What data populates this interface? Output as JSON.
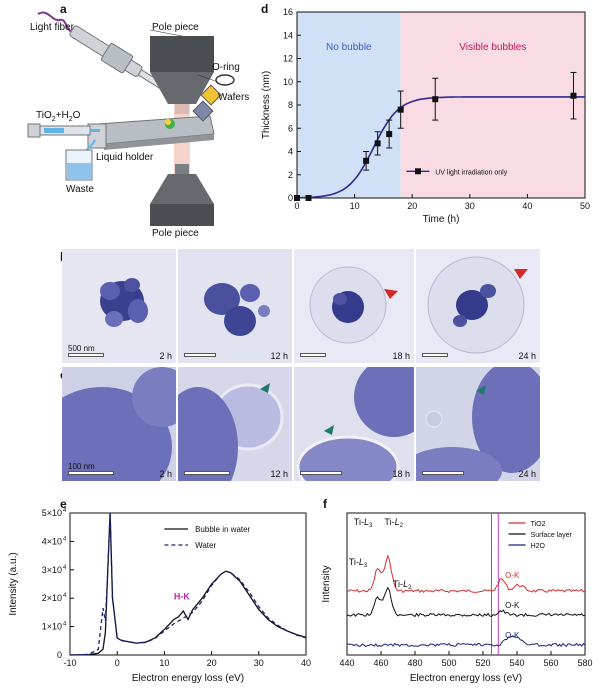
{
  "panels": {
    "a": {
      "label": "a",
      "labels": {
        "light_fiber": "Light fiber",
        "pole_top": "Pole piece",
        "oring": "O-ring",
        "wafers": "Wafers",
        "tio2": "TiO",
        "tio2_sub": "2",
        "tio2_rest": "+H",
        "h2o_sub": "2",
        "o": "O",
        "liquid_holder": "Liquid holder",
        "waste": "Waste",
        "pole_bottom": "Pole piece"
      }
    },
    "b": {
      "label": "b",
      "scale": "500 nm",
      "tiles": [
        "2 h",
        "12 h",
        "18 h",
        "24 h"
      ]
    },
    "c": {
      "label": "c",
      "scale": "100 nm",
      "tiles": [
        "2 h",
        "12 h",
        "18 h",
        "24 h"
      ]
    },
    "d": {
      "label": "d"
    },
    "e": {
      "label": "e"
    },
    "f": {
      "label": "f"
    }
  },
  "chart_data": [
    {
      "id": "d",
      "type": "scatter",
      "xlabel": "Time (h)",
      "ylabel": "Thickness (nm)",
      "xlim": [
        0,
        50
      ],
      "ylim": [
        0,
        16
      ],
      "xticks": [
        0,
        10,
        20,
        30,
        40,
        50
      ],
      "yticks": [
        0,
        2,
        4,
        6,
        8,
        10,
        12,
        14,
        16
      ],
      "regions": [
        {
          "label": "No bubble",
          "x0": 0,
          "x1": 18,
          "color": "#cfe0f7",
          "text_color": "#3a5fc8"
        },
        {
          "label": "Visible bubbles",
          "x0": 18,
          "x1": 50,
          "color": "#f9dbe3",
          "text_color": "#c2185b"
        }
      ],
      "series": [
        {
          "name": "UV light irradiation only",
          "x": [
            0,
            2,
            12,
            14,
            16,
            18,
            24,
            48
          ],
          "y": [
            0,
            0,
            3.2,
            4.7,
            5.5,
            7.6,
            8.5,
            8.8
          ],
          "err": [
            0,
            0,
            0.8,
            1.0,
            1.2,
            1.6,
            1.8,
            2.0
          ]
        }
      ],
      "legend": "center-right"
    },
    {
      "id": "e",
      "type": "line",
      "xlabel": "Electron energy loss (eV)",
      "ylabel": "Intensity (a.u.)",
      "xlim": [
        -10,
        40
      ],
      "ylim": [
        0,
        50000
      ],
      "xticks": [
        -10,
        0,
        10,
        20,
        30,
        40
      ],
      "yticks": [
        0,
        10000,
        20000,
        30000,
        40000,
        50000
      ],
      "ytick_labels": [
        "0",
        "1×10",
        "2×10",
        "3×10",
        "4×10",
        "5×10"
      ],
      "ytick_exp": "4",
      "annotation": "H-K",
      "series": [
        {
          "name": "Bubble in water",
          "x": [
            -10,
            -6,
            -4,
            -3,
            -2.5,
            -2,
            -1.5,
            -1,
            0,
            1,
            2,
            4,
            6,
            8,
            10,
            12,
            13,
            14,
            15,
            16,
            18,
            20,
            22,
            23,
            24,
            26,
            28,
            30,
            32,
            34,
            36,
            38,
            40
          ],
          "y": [
            0,
            100,
            600,
            2000,
            8000,
            30000,
            50000,
            20000,
            6000,
            5000,
            4800,
            4200,
            4500,
            6000,
            9000,
            12500,
            13500,
            15500,
            12500,
            16000,
            20000,
            25000,
            28500,
            29500,
            29000,
            26000,
            21000,
            16000,
            12500,
            10000,
            8500,
            7200,
            6200
          ]
        },
        {
          "name": "Water",
          "x": [
            -10,
            -6,
            -4,
            -3,
            -2.5,
            -2,
            -1.5,
            -1,
            0,
            1,
            2,
            4,
            6,
            8,
            10,
            12,
            14,
            16,
            18,
            20,
            22,
            23,
            24,
            26,
            28,
            30,
            32,
            34,
            36,
            38,
            40
          ],
          "y": [
            0,
            200,
            2000,
            16500,
            12000,
            30000,
            50000,
            20000,
            6000,
            5200,
            4800,
            4200,
            4400,
            5800,
            8500,
            11000,
            13000,
            15000,
            19000,
            24500,
            28500,
            29500,
            29000,
            26500,
            22000,
            17000,
            13000,
            10500,
            8500,
            7000,
            6000
          ]
        }
      ],
      "legend": "top-right"
    },
    {
      "id": "f",
      "type": "line",
      "xlabel": "Electron energy loss (eV)",
      "ylabel": "Intensity",
      "xlim": [
        440,
        580
      ],
      "xticks": [
        440,
        460,
        480,
        500,
        520,
        540,
        560,
        580
      ],
      "vlines": [
        525,
        529
      ],
      "annotations": {
        "ti_l3_top": "Ti-",
        "ti_l2_top": "Ti-",
        "ti_l3_mid": "Ti-",
        "ti_l2_mid": "Ti-",
        "l3": "L",
        "l3_sub": "3",
        "l2": "L",
        "l2_sub": "2",
        "ok_red": "O-K",
        "ok_black": "O-K",
        "ok_blue": "O-K"
      },
      "series": [
        {
          "name": "TiO2",
          "color": "#d32f2f"
        },
        {
          "name": "Surface layer",
          "color": "#111111"
        },
        {
          "name": "H2O",
          "color": "#1a237e"
        }
      ],
      "legend": "top-right"
    }
  ]
}
